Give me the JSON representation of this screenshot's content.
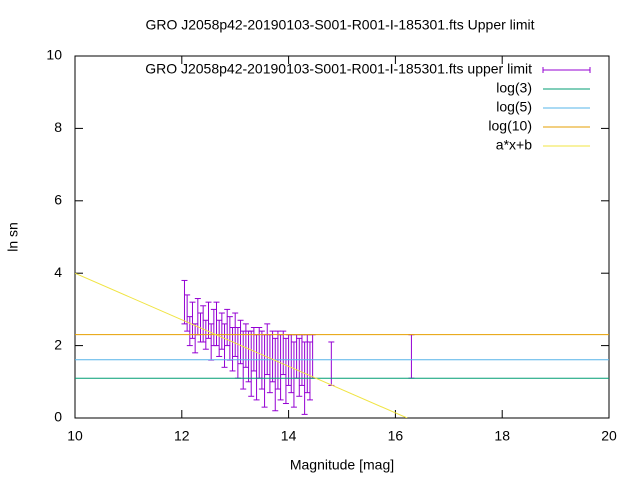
{
  "chart_data": {
    "type": "errorbar",
    "title": "GRO J2058p42-20190103-S001-R001-I-185301.fts Upper limit",
    "x_label": "Magnitude [mag]",
    "y_label": "ln sn",
    "xlim": [
      10,
      20
    ],
    "xticks": [
      10,
      12,
      14,
      16,
      18,
      20
    ],
    "ylim": [
      0,
      10
    ],
    "yticks": [
      0,
      2,
      4,
      6,
      8,
      10
    ],
    "legend": "top-right",
    "series": [
      {
        "name": "GRO J2058p42-20190103-S001-R001-I-185301.fts upper limit",
        "type": "errorbar",
        "color": "#9400d3",
        "x": [
          12.05,
          12.1,
          12.15,
          12.2,
          12.25,
          12.3,
          12.35,
          12.4,
          12.45,
          12.5,
          12.55,
          12.6,
          12.65,
          12.7,
          12.75,
          12.8,
          12.85,
          12.9,
          12.95,
          13.0,
          13.05,
          13.1,
          13.15,
          13.2,
          13.25,
          13.3,
          13.35,
          13.4,
          13.45,
          13.5,
          13.55,
          13.6,
          13.65,
          13.7,
          13.75,
          13.8,
          13.85,
          13.9,
          13.95,
          14.0,
          14.05,
          14.1,
          14.15,
          14.2,
          14.25,
          14.3,
          14.35,
          14.4,
          14.45,
          14.8,
          16.3
        ],
        "values": [
          3.2,
          2.9,
          2.4,
          2.7,
          2.2,
          2.8,
          2.5,
          2.6,
          2.3,
          2.7,
          2.1,
          2.5,
          2.6,
          2.2,
          2.4,
          2.0,
          2.5,
          2.2,
          1.9,
          2.3,
          1.8,
          2.1,
          1.6,
          2.0,
          1.7,
          1.5,
          1.9,
          1.4,
          1.8,
          1.6,
          1.3,
          1.9,
          1.5,
          1.7,
          1.2,
          1.6,
          1.4,
          1.8,
          1.3,
          1.6,
          1.5,
          1.2,
          1.7,
          1.4,
          1.6,
          1.1,
          1.5,
          1.3,
          1.7,
          1.5,
          1.7
        ],
        "errors": [
          0.6,
          0.5,
          0.4,
          0.5,
          0.4,
          0.5,
          0.4,
          0.5,
          0.4,
          0.5,
          0.5,
          0.5,
          0.6,
          0.5,
          0.5,
          0.6,
          0.5,
          0.6,
          0.6,
          0.6,
          0.7,
          0.6,
          0.8,
          0.6,
          0.7,
          0.9,
          0.6,
          0.9,
          0.7,
          0.8,
          1.0,
          0.7,
          0.8,
          0.7,
          1.0,
          0.8,
          0.9,
          0.6,
          0.9,
          0.7,
          0.8,
          0.9,
          0.6,
          0.8,
          0.7,
          1.0,
          0.8,
          0.8,
          0.6,
          0.6,
          0.6
        ]
      },
      {
        "name": "log(3)",
        "type": "line",
        "color": "#009e73",
        "x": [
          10,
          20
        ],
        "values": [
          1.0986,
          1.0986
        ]
      },
      {
        "name": "log(5)",
        "type": "line",
        "color": "#56b4e9",
        "x": [
          10,
          20
        ],
        "values": [
          1.6094,
          1.6094
        ]
      },
      {
        "name": "log(10)",
        "type": "line",
        "color": "#e69f00",
        "x": [
          10,
          20
        ],
        "values": [
          2.3026,
          2.3026
        ]
      },
      {
        "name": "a*x+b",
        "type": "line",
        "color": "#f0e442",
        "x": [
          10,
          16.22
        ],
        "values": [
          4.0,
          0
        ]
      }
    ]
  }
}
